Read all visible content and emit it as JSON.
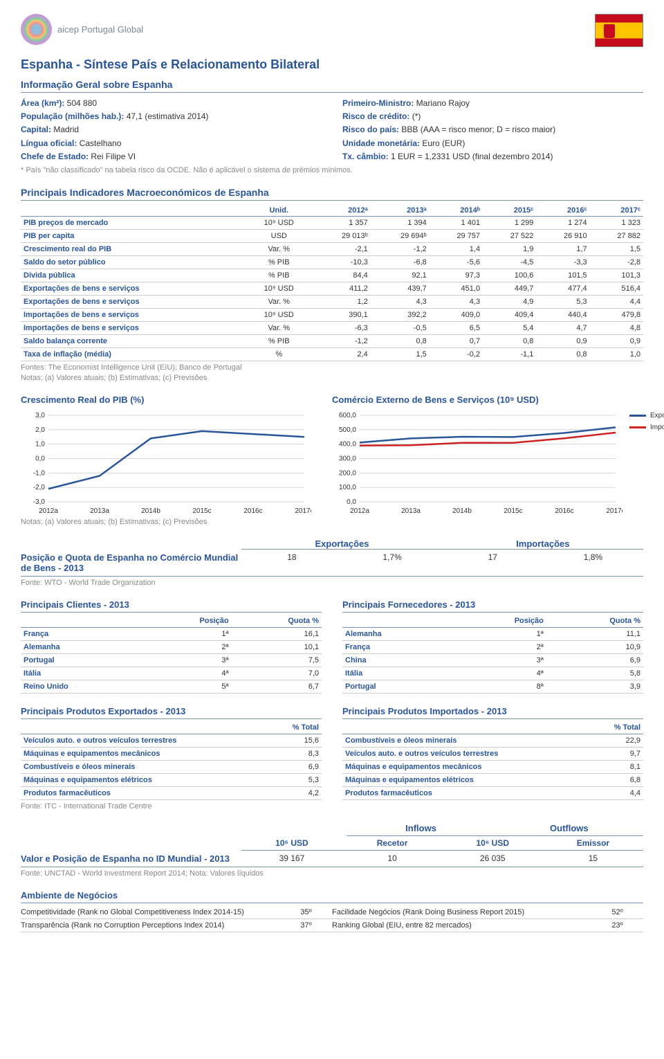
{
  "header": {
    "logo_text": "aicep Portugal Global"
  },
  "title": "Espanha - Síntese País e Relacionamento Bilateral",
  "general_info": {
    "heading": "Informação Geral sobre Espanha",
    "left": [
      {
        "label": "Área (km²):",
        "value": " 504 880"
      },
      {
        "label": "População (milhões hab.):",
        "value": " 47,1 (estimativa 2014)"
      },
      {
        "label": "Capital:",
        "value": " Madrid"
      },
      {
        "label": "Língua oficial:",
        "value": " Castelhano"
      },
      {
        "label": "Chefe de Estado:",
        "value": " Rei Filipe VI"
      }
    ],
    "right": [
      {
        "label": "Primeiro-Ministro:",
        "value": " Mariano Rajoy"
      },
      {
        "label": "Risco de crédito:",
        "value": " (*)"
      },
      {
        "label": "Risco do país:",
        "value": " BBB (AAA = risco menor; D = risco maior)"
      },
      {
        "label": "Unidade monetária:",
        "value": " Euro (EUR)"
      },
      {
        "label": "Tx. câmbio:",
        "value": " 1 EUR = 1,2331 USD (final dezembro 2014)"
      }
    ],
    "note": "* País \"não classificado\" na tabela risco da OCDE. Não é aplicável o sistema de prémios mínimos."
  },
  "indicators": {
    "heading": "Principais Indicadores Macroeconómicos de Espanha",
    "cols": [
      "",
      "Unid.",
      "2012ᵃ",
      "2013ᵃ",
      "2014ᵇ",
      "2015ᶜ",
      "2016ᶜ",
      "2017ᶜ"
    ],
    "rows": [
      [
        "PIB preços de mercado",
        "10⁹ USD",
        "1 357",
        "1 394",
        "1 401",
        "1 299",
        "1 274",
        "1 323"
      ],
      [
        "PIB per capita",
        "USD",
        "29 013ᵇ",
        "29 694ᵇ",
        "29 757",
        "27 522",
        "26 910",
        "27 882"
      ],
      [
        "Crescimento real do PIB",
        "Var. %",
        "-2,1",
        "-1,2",
        "1,4",
        "1,9",
        "1,7",
        "1,5"
      ],
      [
        "Saldo do setor público",
        "% PIB",
        "-10,3",
        "-6,8",
        "-5,6",
        "-4,5",
        "-3,3",
        "-2,8"
      ],
      [
        "Dívida pública",
        "% PIB",
        "84,4",
        "92,1",
        "97,3",
        "100,6",
        "101,5",
        "101,3"
      ],
      [
        "Exportações de bens e serviços",
        "10⁹ USD",
        "411,2",
        "439,7",
        "451,0",
        "449,7",
        "477,4",
        "516,4"
      ],
      [
        "Exportações de bens e serviços",
        "Var. %",
        "1,2",
        "4,3",
        "4,3",
        "4,9",
        "5,3",
        "4,4"
      ],
      [
        "Importações de bens e serviços",
        "10⁹ USD",
        "390,1",
        "392,2",
        "409,0",
        "409,4",
        "440,4",
        "479,8"
      ],
      [
        "Importações de bens e serviços",
        "Var. %",
        "-6,3",
        "-0,5",
        "6,5",
        "5,4",
        "4,7",
        "4,8"
      ],
      [
        "Saldo balança corrente",
        "% PIB",
        "-1,2",
        "0,8",
        "0,7",
        "0,8",
        "0,9",
        "0,9"
      ],
      [
        "Taxa de inflação (média)",
        "%",
        "2,4",
        "1,5",
        "-0,2",
        "-1,1",
        "0,8",
        "1,0"
      ]
    ],
    "source": "Fontes: The Economist Intelligence Unit (EIU); Banco de Portugal",
    "notes": "Notas: (a) Valores atuais; (b) Estimativas; (c) Previsões"
  },
  "chart1": {
    "title": "Crescimento Real do PIB (%)",
    "labels": [
      "2012a",
      "2013a",
      "2014b",
      "2015c",
      "2016c",
      "2017c"
    ],
    "values": [
      -2.1,
      -1.2,
      1.4,
      1.9,
      1.7,
      1.5
    ],
    "ymin": -3.0,
    "ymax": 3.0,
    "ystep": 1.0,
    "ylabels": [
      "3,0",
      "2,0",
      "1,0",
      "0,0",
      "-1,0",
      "-2,0",
      "-3,0"
    ],
    "line_color": "#2a5599",
    "grid_color": "#d0d4dc",
    "bg": "#ffffff",
    "note": "Notas: (a) Valores atuais; (b) Estimativas; (c) Previsões"
  },
  "chart2": {
    "title": "Comércio Externo de Bens e Serviços (10⁹ USD)",
    "labels": [
      "2012a",
      "2013a",
      "2014b",
      "2015c",
      "2016c",
      "2017c"
    ],
    "exports": [
      411.2,
      439.7,
      451.0,
      449.7,
      477.4,
      516.4
    ],
    "imports": [
      390.1,
      392.2,
      409.0,
      409.4,
      440.4,
      479.8
    ],
    "ymin": 0,
    "ymax": 600,
    "ystep": 100,
    "ylabels": [
      "600,0",
      "500,0",
      "400,0",
      "300,0",
      "200,0",
      "100,0",
      "0,0"
    ],
    "export_color": "#2a5599",
    "import_color": "#cc2222",
    "grid_color": "#d0d4dc",
    "legend": {
      "exp": "Exportações",
      "imp": "Importações"
    }
  },
  "trade_pos": {
    "exp_label": "Exportações",
    "imp_label": "Importações",
    "row_label": "Posição e Quota de Espanha no Comércio Mundial de Bens - 2013",
    "vals": [
      "18",
      "1,7%",
      "17",
      "1,8%"
    ],
    "source": "Fonte: WTO - World Trade Organization"
  },
  "clients": {
    "heading": "Principais Clientes - 2013",
    "cols": [
      "",
      "Posição",
      "Quota %"
    ],
    "rows": [
      [
        "França",
        "1ª",
        "16,1"
      ],
      [
        "Alemanha",
        "2ª",
        "10,1"
      ],
      [
        "Portugal",
        "3ª",
        "7,5"
      ],
      [
        "Itália",
        "4ª",
        "7,0"
      ],
      [
        "Reino Unido",
        "5ª",
        "6,7"
      ]
    ]
  },
  "suppliers": {
    "heading": "Principais Fornecedores - 2013",
    "cols": [
      "",
      "Posição",
      "Quota %"
    ],
    "rows": [
      [
        "Alemanha",
        "1ª",
        "11,1"
      ],
      [
        "França",
        "2ª",
        "10,9"
      ],
      [
        "China",
        "3ª",
        "6,9"
      ],
      [
        "Itália",
        "4ª",
        "5,8"
      ],
      [
        "Portugal",
        "8ª",
        "3,9"
      ]
    ]
  },
  "products_exp": {
    "heading": "Principais Produtos Exportados - 2013",
    "cols": [
      "",
      "% Total"
    ],
    "rows": [
      [
        "Veículos auto. e outros veículos terrestres",
        "15,6"
      ],
      [
        "Máquinas e equipamentos mecânicos",
        "8,3"
      ],
      [
        "Combustíveis e óleos minerais",
        "6,9"
      ],
      [
        "Máquinas e equipamentos elétricos",
        "5,3"
      ],
      [
        "Produtos farmacêuticos",
        "4,2"
      ]
    ],
    "source": "Fonte: ITC - International Trade Centre"
  },
  "products_imp": {
    "heading": "Principais Produtos Importados - 2013",
    "cols": [
      "",
      "% Total"
    ],
    "rows": [
      [
        "Combustíveis e óleos minerais",
        "22,9"
      ],
      [
        "Veículos auto. e outros veículos terrestres",
        "9,7"
      ],
      [
        "Máquinas e equipamentos mecânicos",
        "8,1"
      ],
      [
        "Máquinas e equipamentos elétricos",
        "6,8"
      ],
      [
        "Produtos farmacêuticos",
        "4,4"
      ]
    ]
  },
  "flows": {
    "inflows_label": "Inflows",
    "outflows_label": "Outflows",
    "sub": [
      "10⁶ USD",
      "Recetor",
      "10⁶ USD",
      "Emissor"
    ],
    "row_label": "Valor e Posição de Espanha no ID Mundial - 2013",
    "vals": [
      "39 167",
      "10",
      "26 035",
      "15"
    ],
    "source": "Fonte: UNCTAD - World Investment Report 2014; Nota: Valores líquidos"
  },
  "ambiente": {
    "heading": "Ambiente de Negócios",
    "rows": [
      [
        "Competitividade (Rank no Global Competitiveness Index 2014-15)",
        "35º",
        "Facilidade Negócios (Rank Doing Business Report 2015)",
        "52º"
      ],
      [
        "Transparência (Rank no Corruption Perceptions Index 2014)",
        "37º",
        "Ranking Global (EIU, entre 82 mercados)",
        "23º"
      ]
    ]
  }
}
